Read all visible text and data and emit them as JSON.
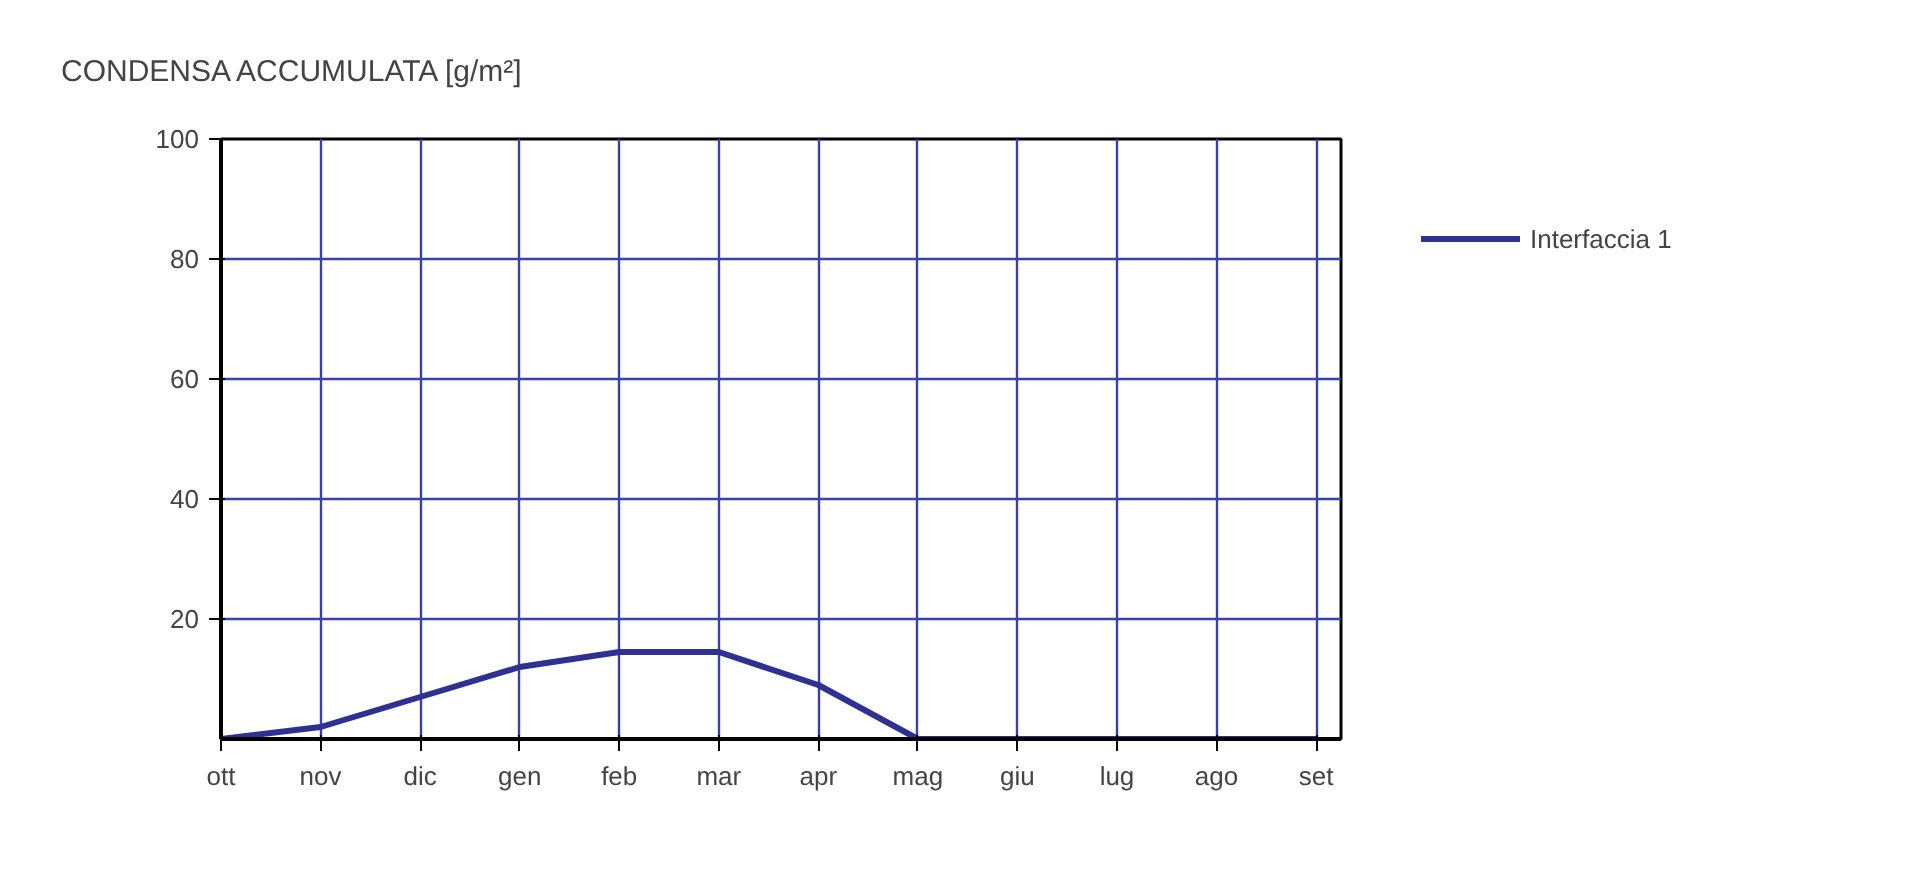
{
  "chart_data": {
    "type": "line",
    "title": "CONDENSA ACCUMULATA [g/m²]",
    "categories": [
      "ott",
      "nov",
      "dic",
      "gen",
      "feb",
      "mar",
      "apr",
      "mag",
      "giu",
      "lug",
      "ago",
      "set"
    ],
    "series": [
      {
        "name": "Interfaccia 1",
        "color": "#2e3192",
        "values": [
          0,
          2,
          7,
          12,
          14.5,
          14.5,
          9,
          0,
          0,
          0,
          0,
          0
        ]
      }
    ],
    "ylim": [
      0,
      100
    ],
    "yticks": [
      20,
      40,
      60,
      80,
      100
    ],
    "grid": true,
    "legend": "right",
    "marker": "none",
    "line_style": "solid"
  }
}
